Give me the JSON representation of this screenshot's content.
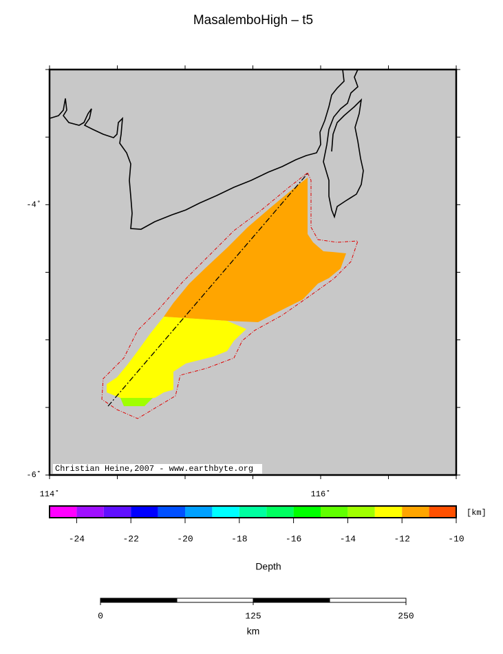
{
  "title": "MasalemboHigh – t5",
  "map": {
    "xlim": [
      114,
      117
    ],
    "ylim": [
      -6,
      -3
    ],
    "xticks": [
      {
        "value": 114,
        "label": "114˚"
      },
      {
        "value": 116,
        "label": "116˚"
      }
    ],
    "yticks": [
      {
        "value": -4,
        "label": "-4˚"
      },
      {
        "value": -6,
        "label": "-6˚"
      }
    ],
    "xminor_ticks": [
      114.5,
      115,
      115.5,
      116.5,
      117
    ],
    "yminor_ticks": [
      -3,
      -3.5,
      -4.5,
      -5,
      -5.5
    ],
    "credit": "Christian Heine,2007 - www.earthbyte.org"
  },
  "colorbar": {
    "lim": [
      -25,
      -10
    ],
    "ticks": [
      -24,
      -22,
      -20,
      -18,
      -16,
      -14,
      -12,
      -10
    ],
    "unit": "[km]",
    "label": "Depth",
    "colors": [
      "#ff00ff",
      "#a010ff",
      "#6010ff",
      "#0000ff",
      "#0050ff",
      "#00a0ff",
      "#00ffff",
      "#00ffa0",
      "#00ff60",
      "#00ff00",
      "#60ff00",
      "#a0ff00",
      "#ffff00",
      "#ffa500",
      "#ff5000"
    ]
  },
  "scalebar": {
    "lim": [
      0,
      250
    ],
    "ticks": [
      0,
      125,
      250
    ],
    "unit": "km"
  }
}
